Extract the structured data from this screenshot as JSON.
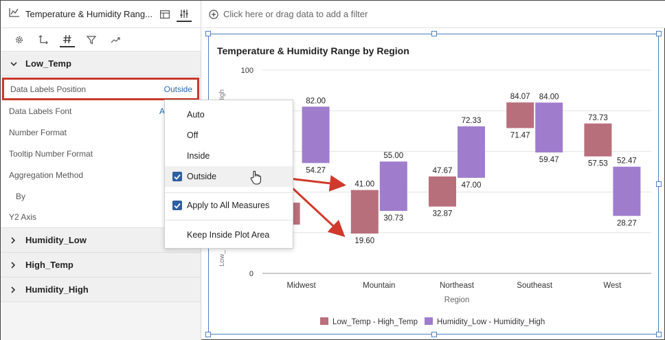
{
  "panel": {
    "title": "Temperature & Humidity Rang...",
    "sections": {
      "low_temp": "Low_Temp",
      "humidity_low": "Humidity_Low",
      "high_temp": "High_Temp",
      "humidity_high": "Humidity_High"
    },
    "props": {
      "data_labels_position": "Data Labels Position",
      "data_labels_position_value": "Outside",
      "data_labels_font": "Data Labels Font",
      "data_labels_font_value": "A",
      "number_format": "Number Format",
      "tooltip_number_format": "Tooltip Number Format",
      "aggregation_method": "Aggregation Method",
      "by": "By",
      "y2_axis": "Y2 Axis"
    }
  },
  "filterbar": {
    "placeholder": "Click here or drag data to add a filter"
  },
  "menu": {
    "items": [
      "Auto",
      "Off",
      "Inside",
      "Outside"
    ],
    "apply_all": "Apply to All Measures",
    "keep_inside": "Keep Inside Plot Area"
  },
  "chart_data": {
    "type": "bar",
    "title": "Temperature & Humidity Range by Region",
    "xlabel": "Region",
    "ylabel_visible_fragments": [
      "y_High",
      "Low_"
    ],
    "categories": [
      "Midwest",
      "Mountain",
      "Northeast",
      "Southeast",
      "West"
    ],
    "ylim": [
      0,
      100
    ],
    "yticks": [
      "0",
      "100"
    ],
    "series": [
      {
        "name": "Low_Temp - High_Temp",
        "color": "#b86f7c",
        "low": [
          null,
          19.6,
          32.87,
          71.47,
          57.53
        ],
        "high": [
          null,
          41.0,
          47.67,
          84.07,
          73.73
        ],
        "low_labels": [
          "",
          "19.60",
          "32.87",
          "71.47",
          "57.53"
        ],
        "high_labels": [
          "",
          "41.00",
          "47.67",
          "84.07",
          "73.73"
        ]
      },
      {
        "name": "Humidity_Low - Humidity_High",
        "color": "#9f7dcc",
        "low": [
          54.27,
          30.73,
          47.0,
          59.47,
          28.27
        ],
        "high": [
          82.0,
          55.0,
          72.33,
          84.0,
          52.47
        ],
        "low_labels": [
          "54.27",
          "30.73",
          "47.00",
          "59.47",
          "28.27"
        ],
        "high_labels": [
          "82.00",
          "55.00",
          "72.33",
          "84.00",
          "52.47"
        ]
      }
    ],
    "legend_position": "bottom",
    "grid": true
  }
}
